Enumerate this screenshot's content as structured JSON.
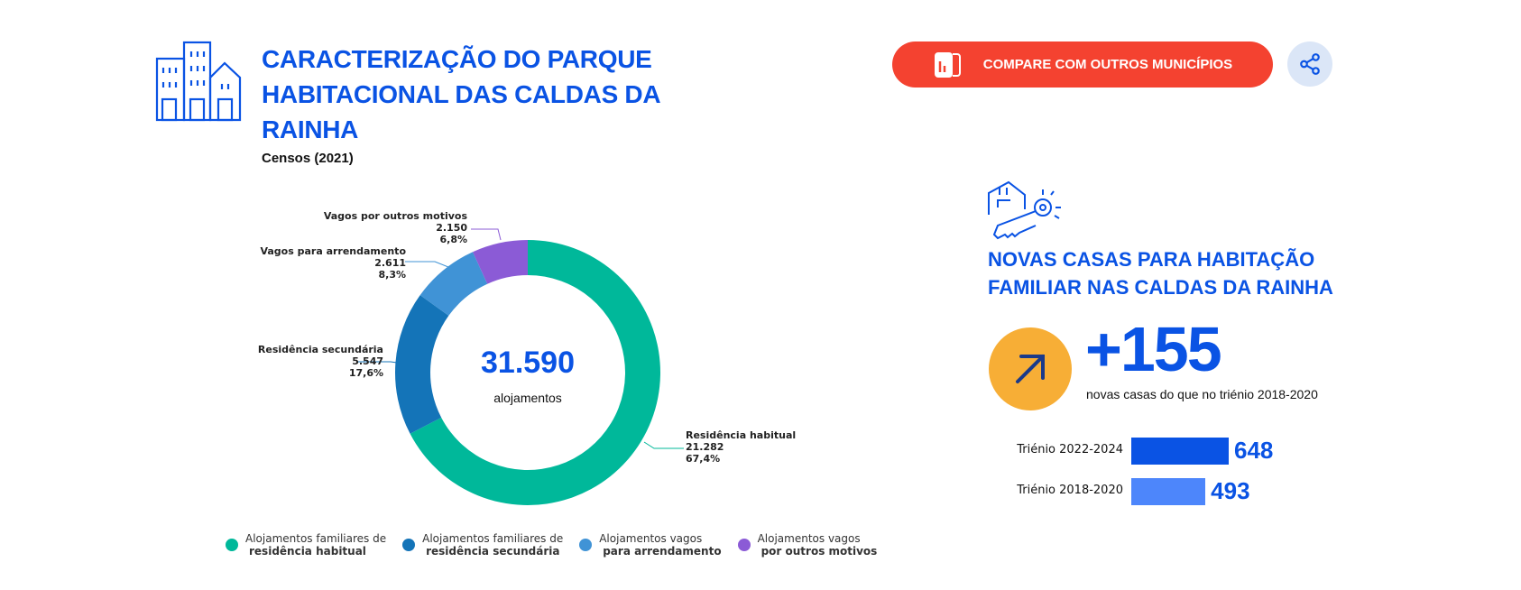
{
  "header": {
    "title": "CARACTERIZAÇÃO DO PARQUE HABITACIONAL DAS CALDAS DA RAINHA",
    "subtitle": "Censos (2021)",
    "compare_label": "COMPARE COM OUTROS MUNICÍPIOS",
    "icons": [
      "buildings-icon",
      "chart-icon",
      "share-icon"
    ]
  },
  "colors": {
    "accent": "#0a53e4",
    "button": "#f44230",
    "orange": "#f7ae36"
  },
  "chart_data": [
    {
      "type": "pie",
      "donut": true,
      "center_value": "31.590",
      "center_label": "alojamentos",
      "slices": [
        {
          "label": "Residência habitual",
          "value": 21282,
          "value_text": "21.282",
          "percent_text": "67,4%",
          "color": "#00b89a",
          "legend": [
            "Alojamentos familiares de",
            "residência habitual"
          ]
        },
        {
          "label": "Residência secundária",
          "value": 5547,
          "value_text": "5.547",
          "percent_text": "17,6%",
          "color": "#1474b8",
          "legend": [
            "Alojamentos familiares de",
            "residência secundária"
          ]
        },
        {
          "label": "Vagos para arrendamento",
          "value": 2611,
          "value_text": "2.611",
          "percent_text": "8,3%",
          "color": "#4093d6",
          "legend": [
            "Alojamentos vagos",
            "para arrendamento"
          ]
        },
        {
          "label": "Vagos por outros motivos",
          "value": 2150,
          "value_text": "2.150",
          "percent_text": "6,8%",
          "color": "#8b5bd6",
          "legend": [
            "Alojamentos vagos",
            "por outros motivos"
          ]
        }
      ],
      "legend_position": "bottom"
    },
    {
      "type": "bar",
      "orientation": "horizontal",
      "categories": [
        "Triénio 2022-2024",
        "Triénio 2018-2020"
      ],
      "values": [
        648,
        493
      ],
      "colors": [
        "#0a53e4",
        "#4d86fb"
      ]
    }
  ],
  "side": {
    "title": "NOVAS CASAS PARA HABITAÇÃO FAMILIAR NAS CALDAS DA RAINHA",
    "delta": "+155",
    "delta_text": "novas casas do que no triénio 2018-2020",
    "icons": [
      "house-key-icon",
      "arrow-up-right-icon"
    ]
  }
}
